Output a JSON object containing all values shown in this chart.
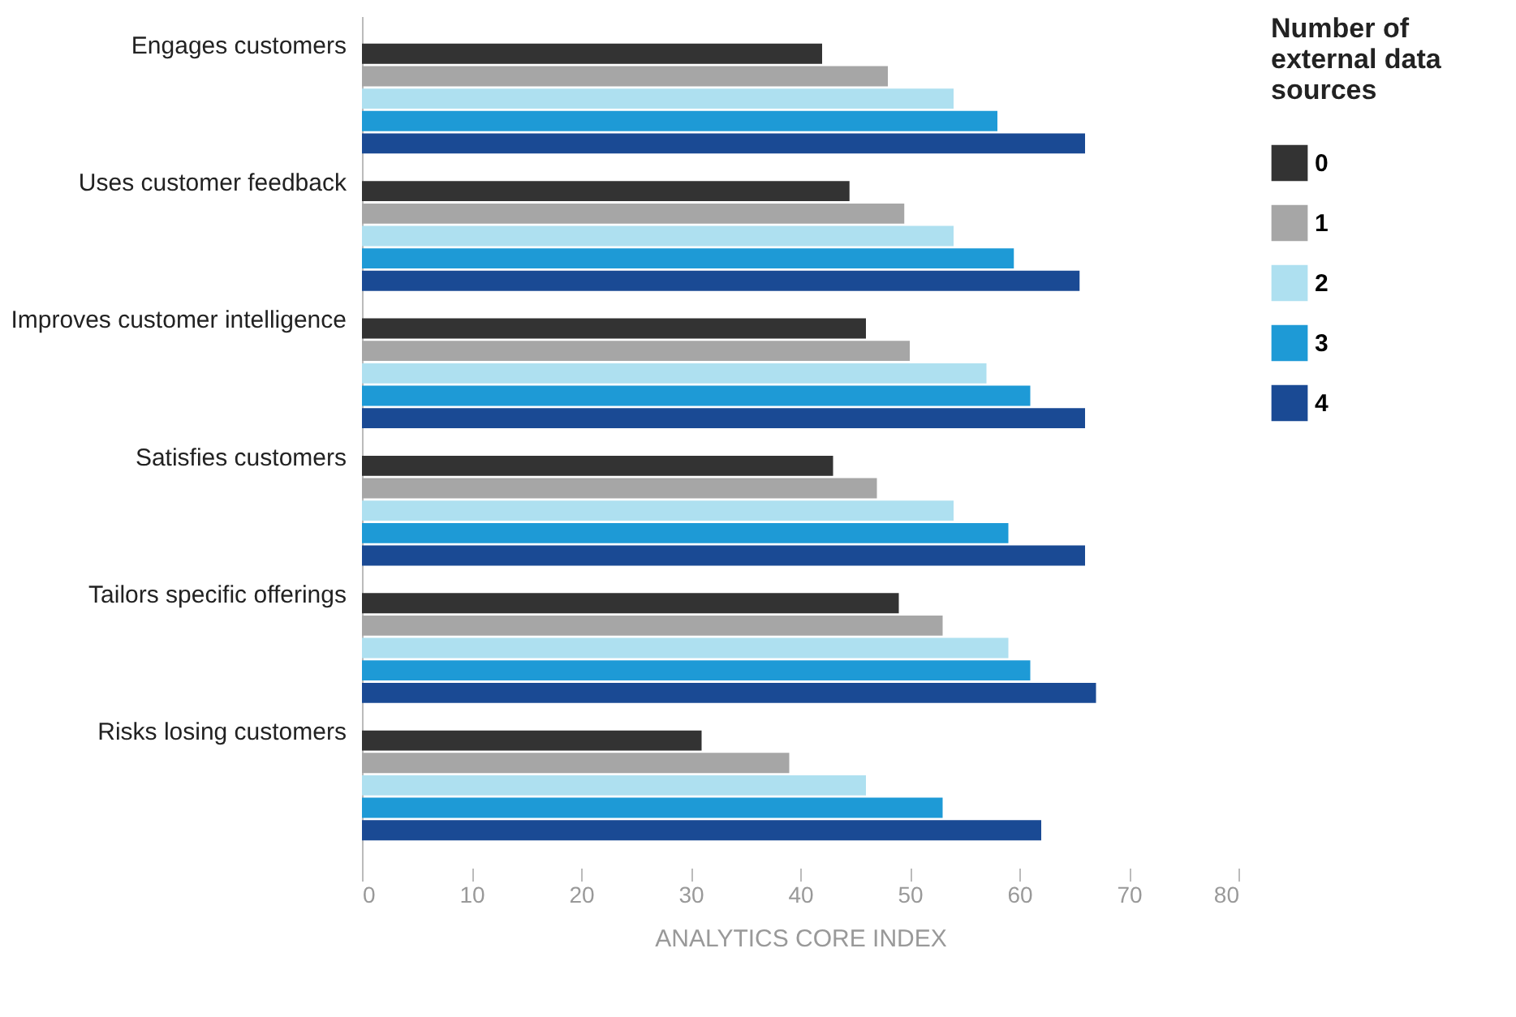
{
  "chart_data": {
    "type": "bar",
    "orientation": "horizontal",
    "xlabel": "ANALYTICS CORE INDEX",
    "legend_title": "Number of external data sources",
    "legend": "right",
    "grid": false,
    "categories": [
      "Engages customers",
      "Uses customer feedback",
      "Improves customer intelligence",
      "Satisfies customers",
      "Tailors specific offerings",
      "Risks losing customers"
    ],
    "xlim": [
      0,
      80
    ],
    "xticks": [
      0,
      10,
      20,
      30,
      40,
      50,
      60,
      70,
      80
    ],
    "series": [
      {
        "name": "0",
        "color": "#333333",
        "values": [
          42,
          44.5,
          46,
          43,
          49,
          31
        ]
      },
      {
        "name": "1",
        "color": "#a6a6a6",
        "values": [
          48,
          49.5,
          50,
          47,
          53,
          39
        ]
      },
      {
        "name": "2",
        "color": "#aee0f0",
        "values": [
          54,
          54,
          57,
          54,
          59,
          46
        ]
      },
      {
        "name": "3",
        "color": "#1e9ad6",
        "values": [
          58,
          59.5,
          61,
          59,
          61,
          53
        ]
      },
      {
        "name": "4",
        "color": "#1a4a94",
        "values": [
          66,
          65.5,
          66,
          66,
          67,
          62
        ]
      }
    ]
  }
}
